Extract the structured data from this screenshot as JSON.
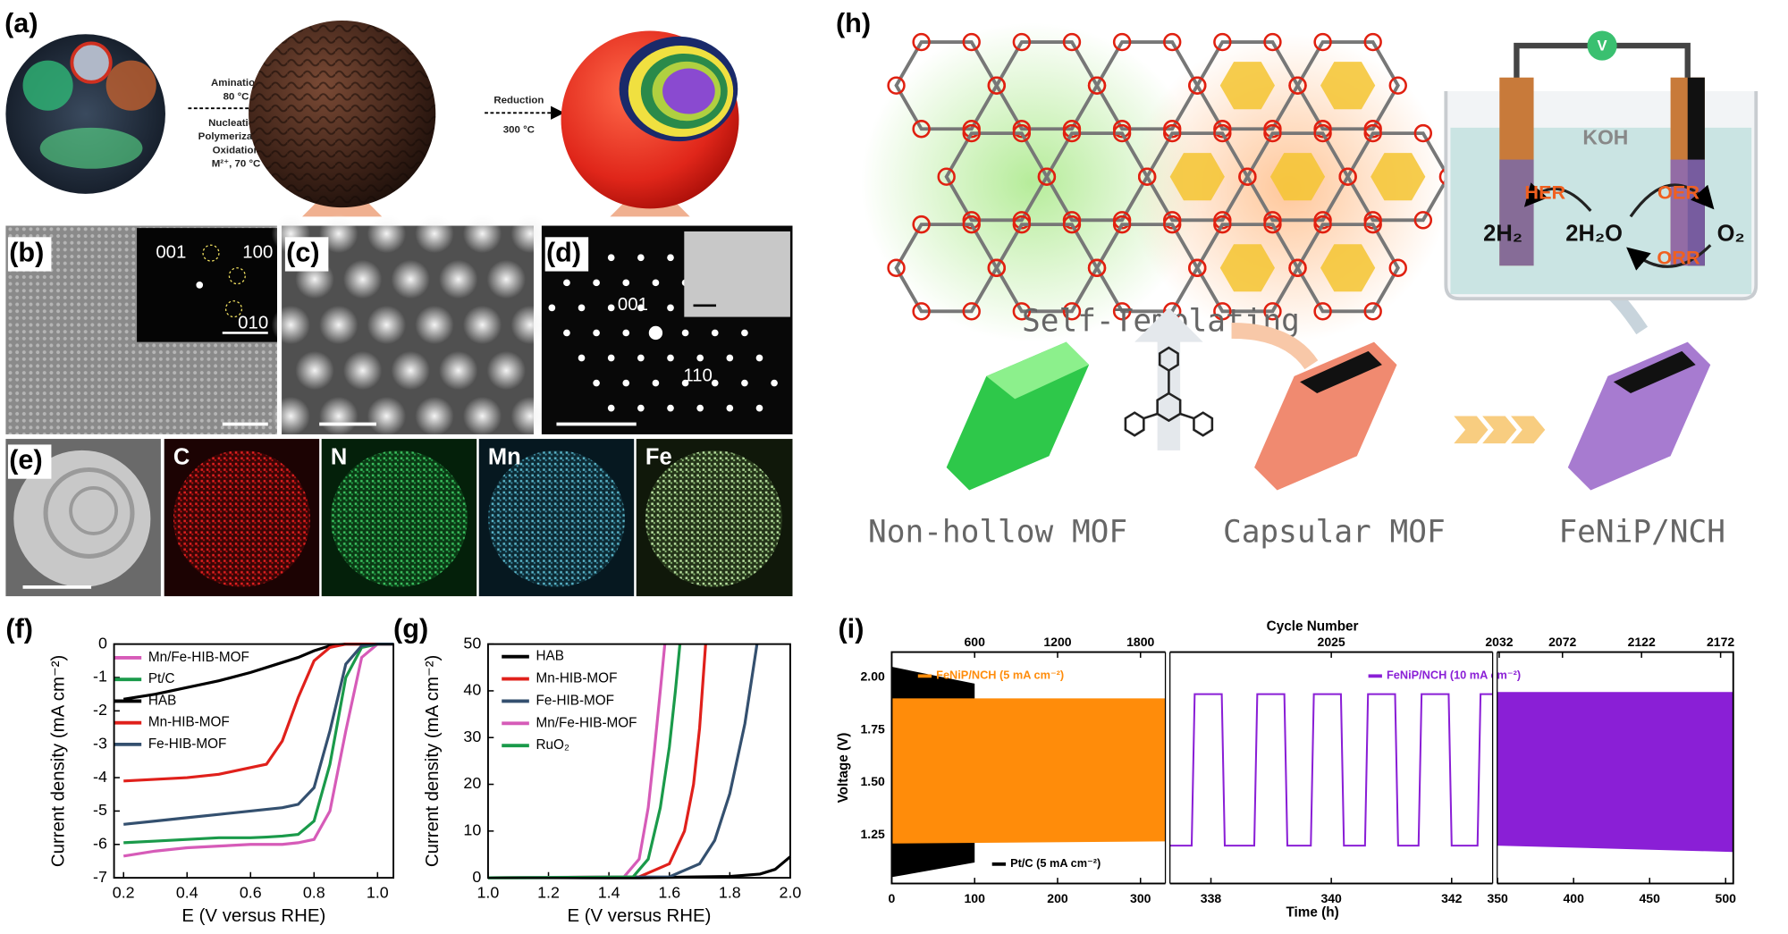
{
  "panels": {
    "a": {
      "label": "(a)",
      "step1": [
        "Amination",
        "80 °C",
        "Nucleation/",
        "Polymerization/",
        "Oxidation",
        "M²⁺, 70 °C"
      ],
      "step2": [
        "Reduction",
        "300 °C"
      ]
    },
    "b": {
      "label": "(b)",
      "spots": [
        "001",
        "100",
        "010"
      ]
    },
    "c": {
      "label": "(c)"
    },
    "d": {
      "label": "(d)",
      "spots": [
        "001",
        "110"
      ]
    },
    "e": {
      "label": "(e)",
      "maps": [
        "C",
        "N",
        "Mn",
        "Fe"
      ]
    },
    "h": {
      "label": "(h)",
      "step": "Self-Templating",
      "stages": [
        "Non-hollow MOF",
        "Capsular MOF",
        "FeNiP/NCH"
      ],
      "cell": {
        "meter": "V",
        "electrolyte": "KOH",
        "left_reaction": "HER",
        "right_reactions": [
          "OER",
          "ORR"
        ],
        "species": [
          "2H₂",
          "2H₂O",
          "O₂"
        ]
      }
    }
  },
  "chart_data": [
    {
      "type": "line",
      "panel_label": "(f)",
      "x_label": "E (V versus RHE)",
      "y_label": "Current density (mA cm⁻²)",
      "xlim": [
        0.17,
        1.05
      ],
      "ylim": [
        -7,
        0
      ],
      "xticks": [
        0.2,
        0.4,
        0.6,
        0.8,
        {
          "value": 1,
          "label": "1.0"
        }
      ],
      "yticks": [
        0,
        -1,
        -2,
        -3,
        -4,
        -5,
        -6,
        -7
      ],
      "x": [
        0.2,
        0.3,
        0.4,
        0.5,
        0.6,
        0.65,
        0.7,
        0.75,
        0.8,
        0.85,
        0.9,
        0.95,
        1.0,
        1.05
      ],
      "series": [
        {
          "name": "Mn/Fe-HIB-MOF",
          "color": "#d65bb8",
          "values": [
            -6.35,
            -6.2,
            -6.1,
            -6.05,
            -6.0,
            -6.0,
            -6.0,
            -5.95,
            -5.85,
            -5.0,
            -2.6,
            -0.4,
            0,
            0
          ]
        },
        {
          "name": "Pt/C",
          "color": "#1a9a4a",
          "values": [
            -5.95,
            -5.9,
            -5.85,
            -5.8,
            -5.8,
            -5.78,
            -5.75,
            -5.7,
            -5.3,
            -3.6,
            -1.0,
            -0.1,
            0,
            0
          ]
        },
        {
          "name": "HAB",
          "color": "#000000",
          "values": [
            -1.65,
            -1.5,
            -1.3,
            -1.1,
            -0.85,
            -0.7,
            -0.55,
            -0.4,
            -0.2,
            -0.05,
            0,
            0,
            0,
            0
          ]
        },
        {
          "name": "Mn-HIB-MOF",
          "color": "#e0201b",
          "values": [
            -4.1,
            -4.05,
            -4.0,
            -3.9,
            -3.7,
            -3.6,
            -2.9,
            -1.6,
            -0.5,
            -0.1,
            0,
            0,
            0,
            0
          ]
        },
        {
          "name": "Fe-HIB-MOF",
          "color": "#34506f",
          "values": [
            -5.4,
            -5.3,
            -5.2,
            -5.1,
            -5.0,
            -4.95,
            -4.9,
            -4.8,
            -4.3,
            -2.6,
            -0.6,
            -0.05,
            0,
            0
          ]
        }
      ]
    },
    {
      "type": "line",
      "panel_label": "(g)",
      "x_label": "E (V versus RHE)",
      "y_label": "Current density (mA cm⁻²)",
      "xlim": [
        1,
        2
      ],
      "ylim": [
        0,
        50
      ],
      "xticks": [
        {
          "value": 1,
          "label": "1.0"
        },
        1.2,
        1.4,
        1.6,
        1.8,
        {
          "value": 2,
          "label": "2.0"
        }
      ],
      "yticks": [
        0,
        10,
        20,
        30,
        40,
        50
      ],
      "series": [
        {
          "name": "HAB",
          "color": "#000000",
          "x": [
            1.0,
            1.5,
            1.8,
            1.9,
            1.95,
            2.0
          ],
          "values": [
            0,
            0,
            0.3,
            0.8,
            1.8,
            4.5
          ]
        },
        {
          "name": "Mn-HIB-MOF",
          "color": "#e0201b",
          "x": [
            1.0,
            1.5,
            1.6,
            1.65,
            1.68,
            1.7,
            1.72
          ],
          "values": [
            0,
            0.2,
            3,
            10,
            20,
            32,
            50
          ]
        },
        {
          "name": "Fe-HIB-MOF",
          "color": "#34506f",
          "x": [
            1.0,
            1.6,
            1.7,
            1.75,
            1.8,
            1.85,
            1.89
          ],
          "values": [
            0,
            0.2,
            3,
            8,
            18,
            33,
            50
          ]
        },
        {
          "name": "Mn/Fe-HIB-MOF",
          "color": "#d65bb8",
          "x": [
            1.0,
            1.45,
            1.5,
            1.53,
            1.55,
            1.57,
            1.585
          ],
          "values": [
            0,
            0.2,
            4,
            15,
            27,
            40,
            50
          ]
        },
        {
          "name": "RuO₂",
          "color": "#1a9a4a",
          "x": [
            1.0,
            1.48,
            1.53,
            1.57,
            1.6,
            1.62,
            1.635
          ],
          "values": [
            0,
            0.2,
            4,
            15,
            28,
            40,
            50
          ]
        }
      ]
    },
    {
      "type": "line",
      "panel_label": "(i)",
      "x_label": "Time (h)",
      "y_label": "Voltage (V)",
      "x2_label": "Cycle Number",
      "xlim_segments": [
        [
          0,
          330
        ],
        [
          337.3,
          342.7
        ],
        [
          349,
          505
        ]
      ],
      "xticks": [
        [
          0,
          100,
          200,
          300
        ],
        [
          338,
          340,
          342
        ],
        [
          350,
          400,
          450,
          500
        ]
      ],
      "x2lim_segments": [
        [
          0,
          1980
        ],
        [
          2024,
          2026
        ],
        [
          2030,
          2180
        ]
      ],
      "x2ticks": [
        [
          600,
          1200,
          1800
        ],
        [
          2025
        ],
        [
          2032,
          2072,
          2122,
          2172
        ]
      ],
      "ylim": [
        1.02,
        2.12
      ],
      "yticks": [
        1.25,
        {
          "value": 1.5,
          "label": "1.50"
        },
        1.75,
        {
          "value": 2,
          "label": "2.00"
        }
      ],
      "series": [
        {
          "name": "Pt/C (5 mA cm⁻²)",
          "color": "#000000",
          "band": {
            "x": [
              0,
              100
            ],
            "high": [
              2.05,
              1.97
            ],
            "low": [
              1.05,
              1.12
            ]
          }
        },
        {
          "name": "FeNiP/NCH (5 mA cm⁻²)",
          "color": "#ff8c0a",
          "band": {
            "x": [
              0,
              330
            ],
            "high": [
              1.9,
              1.9
            ],
            "low": [
              1.21,
              1.22
            ]
          }
        },
        {
          "name": "FeNiP/NCH (10 mA cm⁻²)",
          "color": "#8a1fd6",
          "x": [
            337.3,
            337.68,
            337.73,
            338.18,
            338.23,
            338.72,
            338.77,
            339.22,
            339.27,
            339.66,
            339.71,
            340.16,
            340.21,
            340.56,
            340.61,
            341.06,
            341.11,
            341.45,
            341.5,
            341.95,
            342.0,
            342.43,
            342.48,
            342.7
          ],
          "values": [
            1.2,
            1.2,
            1.92,
            1.92,
            1.2,
            1.2,
            1.92,
            1.92,
            1.2,
            1.2,
            1.92,
            1.92,
            1.2,
            1.2,
            1.92,
            1.92,
            1.2,
            1.2,
            1.92,
            1.92,
            1.2,
            1.2,
            1.92,
            1.92
          ],
          "band": {
            "x": [
              349,
              505
            ],
            "high": [
              1.93,
              1.93
            ],
            "low": [
              1.2,
              1.17
            ]
          }
        }
      ]
    }
  ]
}
